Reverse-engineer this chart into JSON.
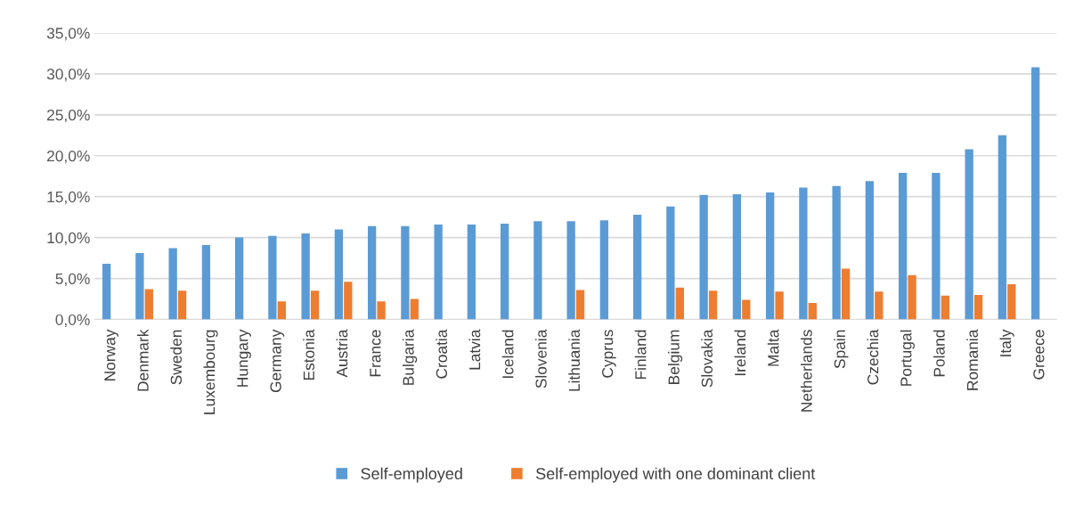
{
  "chart_data": {
    "type": "bar",
    "categories": [
      "Norway",
      "Denmark",
      "Sweden",
      "Luxembourg",
      "Hungary",
      "Germany",
      "Estonia",
      "Austria",
      "France",
      "Bulgaria",
      "Croatia",
      "Latvia",
      "Iceland",
      "Slovenia",
      "Lithuania",
      "Cyprus",
      "Finland",
      "Belgium",
      "Slovakia",
      "Ireland",
      "Malta",
      "Netherlands",
      "Spain",
      "Czechia",
      "Portugal",
      "Poland",
      "Romania",
      "Italy",
      "Greece"
    ],
    "series": [
      {
        "name": "Self-employed",
        "color": "#5b9bd5",
        "values": [
          6.8,
          8.1,
          8.7,
          9.1,
          10.0,
          10.2,
          10.5,
          11.0,
          11.4,
          11.4,
          11.6,
          11.6,
          11.7,
          12.0,
          12.0,
          12.1,
          12.8,
          13.8,
          15.2,
          15.3,
          15.5,
          16.1,
          16.3,
          16.9,
          17.9,
          17.9,
          20.8,
          22.5,
          30.8
        ]
      },
      {
        "name": "Self-employed with one dominant client",
        "color": "#ed7d31",
        "values": [
          null,
          3.7,
          3.5,
          null,
          null,
          2.2,
          3.5,
          4.6,
          2.2,
          2.5,
          null,
          null,
          null,
          null,
          3.6,
          null,
          null,
          3.9,
          3.5,
          2.4,
          3.4,
          2.0,
          6.2,
          3.4,
          5.4,
          2.9,
          3.0,
          4.3,
          null
        ]
      }
    ],
    "ylim": [
      0,
      35
    ],
    "yticks": [
      {
        "value": 0,
        "label": "0,0%"
      },
      {
        "value": 5,
        "label": "5,0%"
      },
      {
        "value": 10,
        "label": "10,0%"
      },
      {
        "value": 15,
        "label": "15,0%"
      },
      {
        "value": 20,
        "label": "20,0%"
      },
      {
        "value": 25,
        "label": "25,0%"
      },
      {
        "value": 30,
        "label": "30,0%"
      },
      {
        "value": 35,
        "label": "35,0%"
      }
    ],
    "grid": "y",
    "legend": "bottom"
  }
}
